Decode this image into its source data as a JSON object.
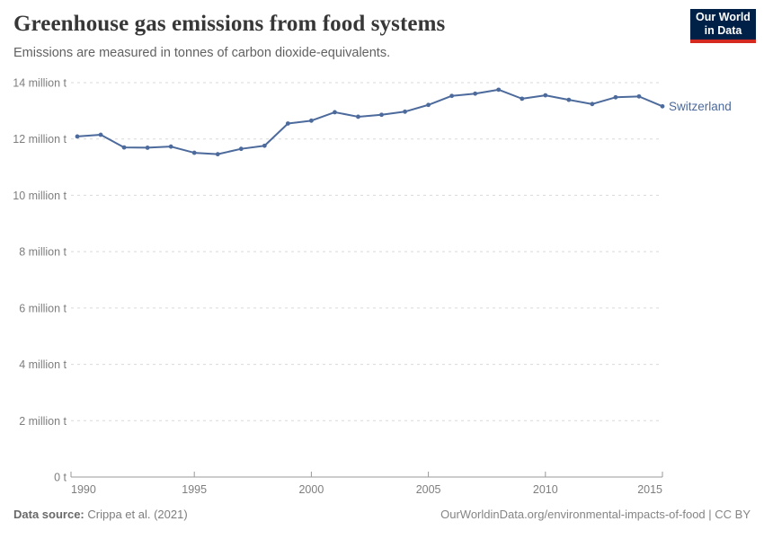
{
  "header": {
    "title": "Greenhouse gas emissions from food systems",
    "subtitle": "Emissions are measured in tonnes of carbon dioxide-equivalents.",
    "logo": {
      "line1": "Our World",
      "line2": "in Data",
      "bg_color": "#002147",
      "accent_color": "#d42a20"
    }
  },
  "chart_data": {
    "type": "line",
    "title": "Greenhouse gas emissions from food systems",
    "subtitle": "Emissions are measured in tonnes of carbon dioxide-equivalents.",
    "unit": "million tonnes of CO2-equivalents",
    "grid": "horizontal dashed",
    "legend_position": "end-of-line label",
    "xlim": [
      1990,
      2015
    ],
    "ylim": [
      0,
      14
    ],
    "x": [
      1990,
      1991,
      1992,
      1993,
      1994,
      1995,
      1996,
      1997,
      1998,
      1999,
      2000,
      2001,
      2002,
      2003,
      2004,
      2005,
      2006,
      2007,
      2008,
      2009,
      2010,
      2011,
      2012,
      2013,
      2014,
      2015
    ],
    "series": [
      {
        "name": "Switzerland",
        "color": "#4c6a9c",
        "values": [
          12.09,
          12.15,
          11.7,
          11.69,
          11.73,
          11.51,
          11.46,
          11.65,
          11.76,
          12.55,
          12.65,
          12.95,
          12.79,
          12.86,
          12.97,
          13.21,
          13.53,
          13.61,
          13.75,
          13.43,
          13.55,
          13.39,
          13.24,
          13.48,
          13.51,
          13.16
        ]
      }
    ],
    "y_ticks": [
      {
        "value": 0,
        "label": "0 t"
      },
      {
        "value": 2,
        "label": "2 million t"
      },
      {
        "value": 4,
        "label": "4 million t"
      },
      {
        "value": 6,
        "label": "6 million t"
      },
      {
        "value": 8,
        "label": "8 million t"
      },
      {
        "value": 10,
        "label": "10 million t"
      },
      {
        "value": 12,
        "label": "12 million t"
      },
      {
        "value": 14,
        "label": "14 million t"
      }
    ],
    "x_ticks": [
      1990,
      1995,
      2000,
      2005,
      2010,
      2015
    ]
  },
  "footer": {
    "source_label": "Data source:",
    "source_text": "Crippa et al. (2021)",
    "credit": "OurWorldinData.org/environmental-impacts-of-food | CC BY"
  }
}
